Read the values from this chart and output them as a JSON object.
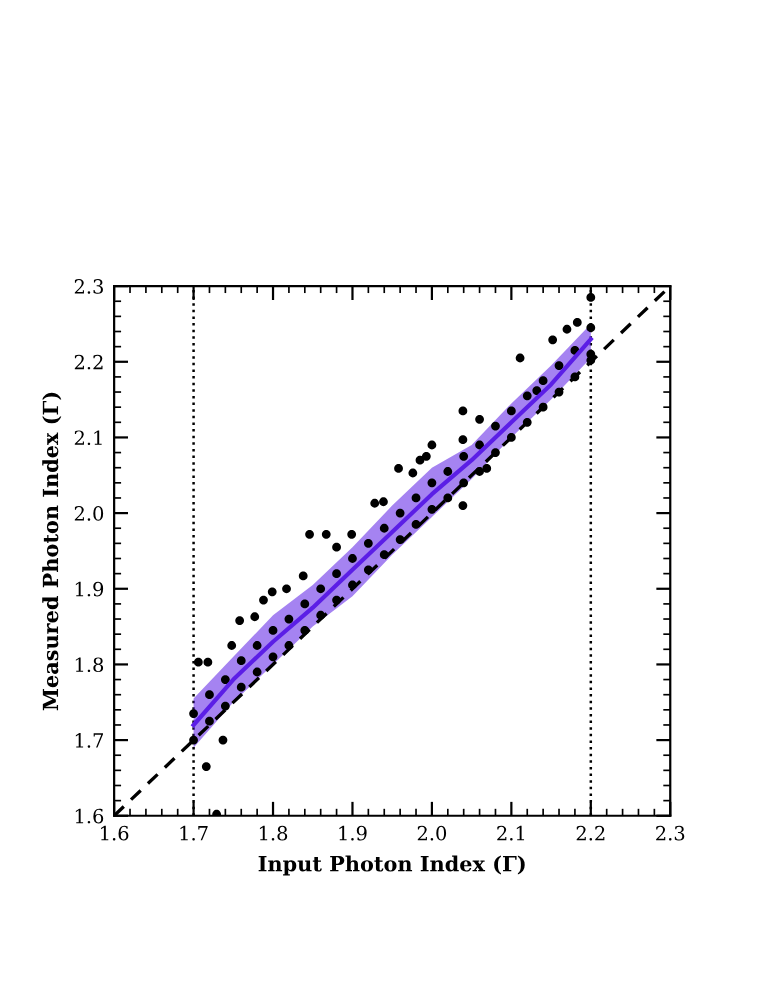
{
  "chart_data": {
    "type": "scatter",
    "xlabel": "Input Photon Index (Γ)",
    "ylabel": "Measured Photon Index (Γ)",
    "xlim": [
      1.6,
      2.3
    ],
    "ylim": [
      1.6,
      2.3
    ],
    "xticks": [
      1.6,
      1.7,
      1.8,
      1.9,
      {
        "value": 2.0,
        "label": "2.0"
      },
      2.1,
      2.2,
      2.3
    ],
    "yticks": [
      1.6,
      1.7,
      1.8,
      1.9,
      {
        "value": 2.0,
        "label": "2.0"
      },
      2.1,
      2.2,
      2.3
    ],
    "grid": false,
    "legend": false,
    "ref_lines": [
      {
        "axis": "x",
        "value": 1.7,
        "color": "#000000",
        "line_style": "dotted"
      },
      {
        "axis": "x",
        "value": 2.2,
        "color": "#000000",
        "line_style": "dotted"
      }
    ],
    "series": [
      {
        "type": "line",
        "color": "#000000",
        "line_style": "dashed",
        "marker": "none",
        "x": [
          1.6,
          2.3
        ],
        "values": [
          1.6,
          2.3
        ]
      },
      {
        "type": "line",
        "color": "#5b1ee6",
        "line_style": "solid",
        "marker": "none",
        "x": [
          1.7,
          1.75,
          1.8,
          1.85,
          1.9,
          1.95,
          2.0,
          2.05,
          2.1,
          2.15,
          2.2
        ],
        "values": [
          1.72,
          1.78,
          1.83,
          1.875,
          1.925,
          1.975,
          2.025,
          2.07,
          2.12,
          2.17,
          2.23
        ],
        "lower": [
          1.69,
          1.75,
          1.8,
          1.85,
          1.89,
          1.945,
          1.995,
          2.045,
          2.1,
          2.15,
          2.205
        ],
        "upper": [
          1.755,
          1.81,
          1.865,
          1.905,
          1.955,
          2.01,
          2.06,
          2.09,
          2.145,
          2.195,
          2.25
        ]
      },
      {
        "color": "#000000",
        "marker": "circle",
        "x": [
          1.706,
          1.718,
          1.716,
          1.729,
          1.737,
          1.748,
          1.758,
          1.777,
          1.788,
          1.799,
          1.817,
          1.838,
          1.846,
          1.867,
          1.88,
          1.899,
          1.928,
          1.939,
          1.958,
          1.976,
          1.985,
          1.993,
          2.0,
          2.039,
          2.039,
          2.039,
          2.06,
          2.069,
          2.111,
          2.132,
          2.152,
          2.17,
          2.183,
          2.2,
          2.2,
          1.7,
          1.7,
          1.72,
          1.72,
          1.74,
          1.74,
          1.76,
          1.76,
          1.78,
          1.78,
          1.8,
          1.8,
          1.82,
          1.82,
          1.84,
          1.84,
          1.86,
          1.86,
          1.88,
          1.88,
          1.9,
          1.9,
          1.92,
          1.92,
          1.94,
          1.94,
          1.96,
          1.96,
          1.98,
          1.98,
          2.0,
          2.0,
          2.02,
          2.02,
          2.04,
          2.04,
          2.06,
          2.06,
          2.08,
          2.08,
          2.1,
          2.1,
          2.12,
          2.12,
          2.14,
          2.14,
          2.16,
          2.16,
          2.18,
          2.18,
          2.2,
          2.2
        ],
        "values": [
          1.803,
          1.803,
          1.665,
          1.602,
          1.7,
          1.825,
          1.858,
          1.863,
          1.885,
          1.896,
          1.9,
          1.917,
          1.972,
          1.972,
          1.955,
          1.972,
          2.013,
          2.015,
          2.059,
          2.053,
          2.07,
          2.075,
          2.09,
          2.135,
          2.097,
          2.01,
          2.124,
          2.059,
          2.205,
          2.162,
          2.229,
          2.243,
          2.252,
          2.285,
          2.202,
          1.735,
          1.7,
          1.76,
          1.725,
          1.78,
          1.745,
          1.805,
          1.77,
          1.825,
          1.79,
          1.845,
          1.81,
          1.86,
          1.825,
          1.88,
          1.845,
          1.9,
          1.865,
          1.92,
          1.885,
          1.94,
          1.905,
          1.96,
          1.925,
          1.98,
          1.945,
          2.0,
          1.965,
          2.02,
          1.985,
          2.04,
          2.005,
          2.055,
          2.02,
          2.075,
          2.04,
          2.09,
          2.055,
          2.115,
          2.08,
          2.135,
          2.1,
          2.155,
          2.12,
          2.175,
          2.14,
          2.195,
          2.16,
          2.215,
          2.18,
          2.245,
          2.21
        ]
      }
    ]
  }
}
